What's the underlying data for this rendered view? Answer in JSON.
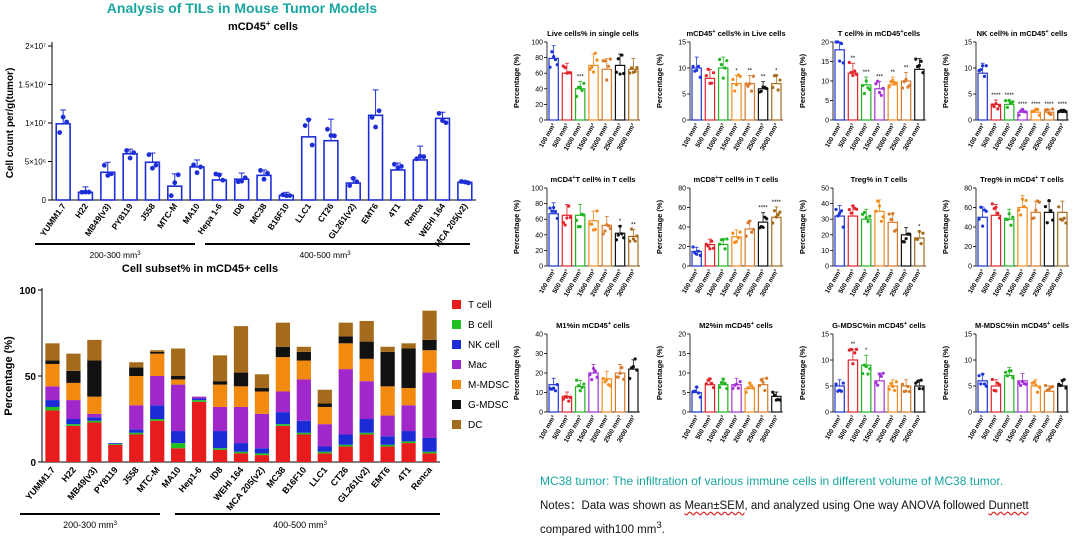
{
  "header": {
    "title": "Analysis of TILs in Mouse Tumor Models"
  },
  "caption": "MC38  tumor: The infiltration of various immune cells in different volume of MC38 tumor.",
  "notes": {
    "prefix": "Notes：Data was shown as ",
    "mean_sem": "Mean±SEM",
    "mid1": ", and analyzed using One way ANOVA followed ",
    "dunnett": "Dunnett",
    "mid2": " compared with100 mm",
    "sup": "3",
    "end": "."
  },
  "groups": {
    "small": "200-300 mm",
    "large": "400-500 mm",
    "sup": "3"
  },
  "chart_data": [
    {
      "id": "mcd45",
      "type": "bar",
      "title": "mCD45",
      "title_sup": "+",
      "title_suffix": " cells",
      "ylabel": "Cell count per/g(tumor)",
      "ylim": [
        0,
        20000000
      ],
      "yticks": [
        "0",
        "5×10⁶",
        "1×10⁷",
        "1.5×10⁷",
        "2×10⁷"
      ],
      "categories": [
        "YUMM1.7",
        "H22",
        "MB49(v3)",
        "PY8119",
        "J558",
        "MTC-M",
        "MA10",
        "Hepa 1-6",
        "ID8",
        "MC38",
        "B16F10",
        "LLC1",
        "CT26",
        "GL261(v2)",
        "EMT6",
        "4T1",
        "Renca",
        "WEHI 164",
        "MCA 205(v2)"
      ],
      "values": [
        9900000,
        1000000,
        3600000,
        6000000,
        4900000,
        1800000,
        4300000,
        2600000,
        2700000,
        3200000,
        600000,
        8200000,
        7700000,
        2200000,
        11000000,
        3900000,
        5200000,
        10600000,
        2300000
      ],
      "errors": [
        1800000,
        700000,
        1300000,
        600000,
        1200000,
        1600000,
        900000,
        800000,
        800000,
        700000,
        400000,
        2300000,
        2800000,
        700000,
        3300000,
        900000,
        1800000,
        800000,
        200000
      ]
    },
    {
      "id": "subset",
      "type": "bar",
      "stacked": true,
      "title": "Cell subset% in mCD45+ cells",
      "ylabel": "Percentage (%)",
      "ylim": [
        0,
        100
      ],
      "yticks": [
        "0",
        "50",
        "100"
      ],
      "categories": [
        "YUMM1.7",
        "H22",
        "MB49(v3)",
        "PY8119",
        "J558",
        "MTC-M",
        "MA10",
        "Hep1-6",
        "ID8",
        "WEHI 164",
        "MCA 205(v2)",
        "MC38",
        "B16F10",
        "LLC1",
        "CT26",
        "GL261(v2)",
        "EMT6",
        "4T1",
        "Renca"
      ],
      "legend_position": "right",
      "series": [
        {
          "name": "T cell",
          "color": "#e81c1c",
          "values": [
            30,
            21,
            23,
            10,
            16,
            24,
            8,
            35,
            7,
            5,
            4,
            21,
            16,
            5,
            9,
            16,
            9,
            11,
            5
          ]
        },
        {
          "name": "B cell",
          "color": "#21c021",
          "values": [
            2,
            1,
            1,
            0.5,
            1,
            1,
            3,
            1,
            1,
            1,
            1,
            1,
            1,
            1,
            1,
            1,
            1,
            1,
            1
          ]
        },
        {
          "name": "NK cell",
          "color": "#1b2bd6",
          "values": [
            4,
            3,
            2,
            0.5,
            2,
            8,
            7,
            1,
            10,
            5,
            3,
            7,
            7,
            3,
            6,
            8,
            5,
            6,
            8
          ]
        },
        {
          "name": "Mac",
          "color": "#a027c9",
          "values": [
            8,
            11,
            2,
            0,
            14,
            17,
            27,
            1,
            14,
            21,
            20,
            12,
            24,
            13,
            38,
            22,
            12,
            15,
            38
          ]
        },
        {
          "name": "M-MDSC",
          "color": "#f28a10",
          "values": [
            13,
            10,
            10,
            0,
            17,
            13,
            3,
            0,
            13,
            12,
            13,
            20,
            11,
            10,
            15,
            13,
            17,
            10,
            13
          ]
        },
        {
          "name": "G-MDSC",
          "color": "#111111",
          "values": [
            2,
            7,
            21,
            0,
            5,
            1,
            2,
            0,
            2,
            8,
            2,
            6,
            5,
            2,
            4,
            10,
            20,
            23,
            6
          ]
        },
        {
          "name": "DC",
          "color": "#a56b1d",
          "values": [
            10,
            10,
            12,
            0,
            3,
            1,
            16,
            0,
            15,
            27,
            8,
            14,
            3,
            8,
            8,
            12,
            3,
            3,
            17
          ]
        }
      ]
    },
    {
      "id": "mc38",
      "type": "bar",
      "group_labels": [
        "100 mm³",
        "500 mm³",
        "1000 mm³",
        "1500 mm³",
        "2000 mm³",
        "2500 mm³",
        "3000 mm³"
      ],
      "group_colors": [
        "#1d34d6",
        "#e3242b",
        "#22b522",
        "#a532d8",
        "#f28d1e",
        "#d87a2c",
        "#111111"
      ],
      "brown_colors": [
        "#1d34d6",
        "#e3242b",
        "#22b522",
        "#f28d1e",
        "#d87a2c",
        "#111111",
        "#a56b1d"
      ],
      "panels": [
        {
          "title": "Live cells% in single cells",
          "sup": "",
          "ylabel": "Percentage (%)",
          "ymax": 100,
          "yticks": [
            "0",
            "20",
            "40",
            "60",
            "80",
            "100"
          ],
          "n": 7,
          "palette": "brown",
          "values": [
            79,
            60,
            40,
            70,
            65,
            70,
            65
          ],
          "sig": [
            "",
            "",
            "***",
            "",
            "",
            "",
            ""
          ]
        },
        {
          "title": "mCD45",
          "sup": "+",
          "title_suffix": " cells% in Live cells",
          "ylabel": "Percentage (%)",
          "ymax": 15,
          "yticks": [
            "0",
            "5",
            "10",
            "15"
          ],
          "n": 7,
          "palette": "brown",
          "values": [
            10,
            8,
            10,
            7,
            7,
            6,
            7
          ],
          "sig": [
            "",
            "",
            "",
            "*",
            "**",
            "**",
            "*"
          ]
        },
        {
          "title": "T cell% in mCD45",
          "sup": "+",
          "title_suffix": "cells",
          "ylabel": "Percentage (%)",
          "ymax": 20,
          "yticks": [
            "0",
            "5",
            "10",
            "15",
            "20"
          ],
          "n": 7,
          "palette": "group",
          "values": [
            18,
            12,
            9,
            8,
            9,
            10,
            13
          ],
          "sig": [
            "",
            "**",
            "***",
            "***",
            "**",
            "**",
            ""
          ]
        },
        {
          "title": "NK cell% in mCD45",
          "sup": "+",
          "title_suffix": " cells",
          "ylabel": "Percentage (%)",
          "ymax": 15,
          "yticks": [
            "0",
            "5",
            "10",
            "15"
          ],
          "n": 7,
          "palette": "group",
          "values": [
            9,
            3,
            3,
            1.5,
            1.5,
            1.5,
            1.5
          ],
          "sig": [
            "",
            "****",
            "****",
            "****",
            "****",
            "****",
            "****"
          ]
        },
        {
          "title": "mCD4",
          "sup": "+",
          "title_suffix": "T cell% in T cells",
          "ylabel": "Percentage (%)",
          "ymax": 100,
          "yticks": [
            "0",
            "20",
            "40",
            "60",
            "80",
            "100"
          ],
          "n": 7,
          "palette": "brown",
          "values": [
            67,
            65,
            65,
            58,
            52,
            42,
            38
          ],
          "sig": [
            "",
            "",
            "",
            "",
            "",
            "*",
            "**"
          ]
        },
        {
          "title": "mCD8",
          "sup": "+",
          "title_suffix": "T cell% in T cells",
          "ylabel": "Percentage (%)",
          "ymax": 80,
          "yticks": [
            "0",
            "20",
            "40",
            "60",
            "80"
          ],
          "n": 7,
          "palette": "brown",
          "values": [
            15,
            22,
            22,
            30,
            38,
            45,
            50
          ],
          "sig": [
            "",
            "",
            "",
            "",
            "",
            "****",
            "****"
          ]
        },
        {
          "title": "Treg% in T cells",
          "sup": "",
          "ylabel": "Percentage (%)",
          "ymax": 50,
          "yticks": [
            "0",
            "10",
            "20",
            "30",
            "40",
            "50"
          ],
          "n": 7,
          "palette": "brown",
          "values": [
            32,
            32,
            30,
            35,
            28,
            20,
            18
          ],
          "sig": [
            "",
            "",
            "",
            "",
            "",
            "",
            "*"
          ]
        },
        {
          "title": "Treg% in mCD4",
          "sup": "+",
          "title_suffix": " T cells",
          "ylabel": "Percentage (%)",
          "ymax": 80,
          "yticks": [
            "0",
            "20",
            "40",
            "60",
            "80"
          ],
          "n": 7,
          "palette": "brown",
          "values": [
            50,
            52,
            48,
            60,
            55,
            55,
            55
          ],
          "sig": [
            "",
            "",
            "",
            "",
            "",
            "",
            ""
          ]
        },
        {
          "title": "M1%in mCD45",
          "sup": "+",
          "title_suffix": " cells",
          "ylabel": "Percentage (%)",
          "ymax": 40,
          "yticks": [
            "0",
            "10",
            "20",
            "30",
            "40"
          ],
          "n": 7,
          "palette": "group",
          "values": [
            14,
            8,
            13,
            20,
            17,
            20,
            22
          ],
          "sig": [
            "",
            "",
            "",
            "",
            "",
            "",
            ""
          ]
        },
        {
          "title": "M2%in mCD45",
          "sup": "+",
          "title_suffix": " cells",
          "ylabel": "Percentage (%)",
          "ymax": 20,
          "yticks": [
            "0",
            "5",
            "10",
            "15",
            "20"
          ],
          "n": 7,
          "palette": "group",
          "values": [
            5,
            7,
            7,
            7,
            6,
            7,
            4
          ],
          "sig": [
            "",
            "",
            "",
            "",
            "",
            "",
            ""
          ]
        },
        {
          "title": "G-MDSC%in mCD45",
          "sup": "+",
          "title_suffix": " cells",
          "ylabel": "Percentage (%)",
          "ymax": 15,
          "yticks": [
            "0",
            "5",
            "10",
            "15"
          ],
          "n": 7,
          "palette": "group",
          "values": [
            5,
            10,
            9,
            6,
            5,
            5,
            5
          ],
          "sig": [
            "",
            "**",
            "*",
            "",
            "",
            "",
            ""
          ]
        },
        {
          "title": "M-MDSC%in mCD45",
          "sup": "+",
          "title_suffix": " cells",
          "ylabel": "Percentage (%)",
          "ymax": 15,
          "yticks": [
            "0",
            "5",
            "10",
            "15"
          ],
          "n": 7,
          "palette": "group",
          "values": [
            6,
            5,
            7,
            6,
            5,
            4,
            5
          ],
          "sig": [
            "",
            "",
            "",
            "",
            "",
            "",
            ""
          ]
        }
      ]
    }
  ]
}
